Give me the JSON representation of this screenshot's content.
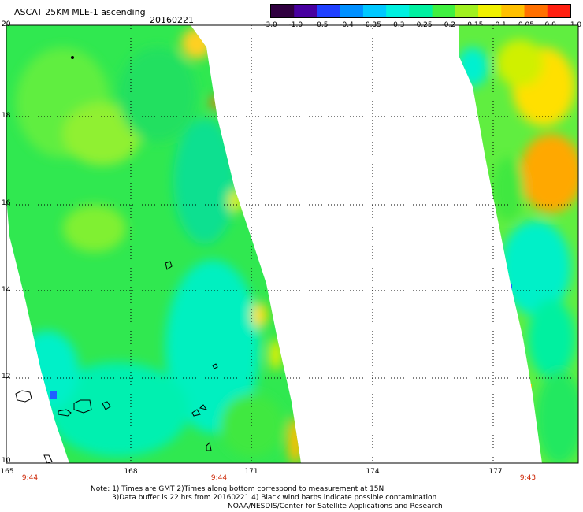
{
  "title": "ASCAT 25KM MLE-1 ascending",
  "date": "20160221",
  "colorbar": {
    "ticks": [
      "-3.0",
      "-1.0",
      "-0.5",
      "-0.4",
      "-0.35",
      "-0.3",
      "-0.25",
      "-0.2",
      "-0.15",
      "-0.1",
      "-0.05",
      "0.0",
      "1.0"
    ],
    "colors": [
      "#300040",
      "#4800a0",
      "#2040ff",
      "#0090ff",
      "#00c8ff",
      "#00f0e0",
      "#00f0a0",
      "#40f040",
      "#a0f020",
      "#f0f000",
      "#ffc000",
      "#ff7000",
      "#ff2010"
    ]
  },
  "axes": {
    "lat_labels": [
      "20",
      "18",
      "16",
      "14",
      "12",
      "10"
    ],
    "lon_labels": [
      "165",
      "168",
      "171",
      "174",
      "177"
    ],
    "lon_range": [
      165,
      179.2
    ],
    "lat_range": [
      10,
      20
    ]
  },
  "time_labels": [
    "9:44",
    "9:44",
    "9:43"
  ],
  "notes": {
    "line1": "Note: 1) Times are GMT 2)Times along bottom correspond to measurement at 15N",
    "line2": "3)Data buffer is 22 hrs from 20160221 4) Black wind barbs indicate possible contamination",
    "line3": "NOAA/NESDIS/Center for Satellite Applications and Research"
  }
}
